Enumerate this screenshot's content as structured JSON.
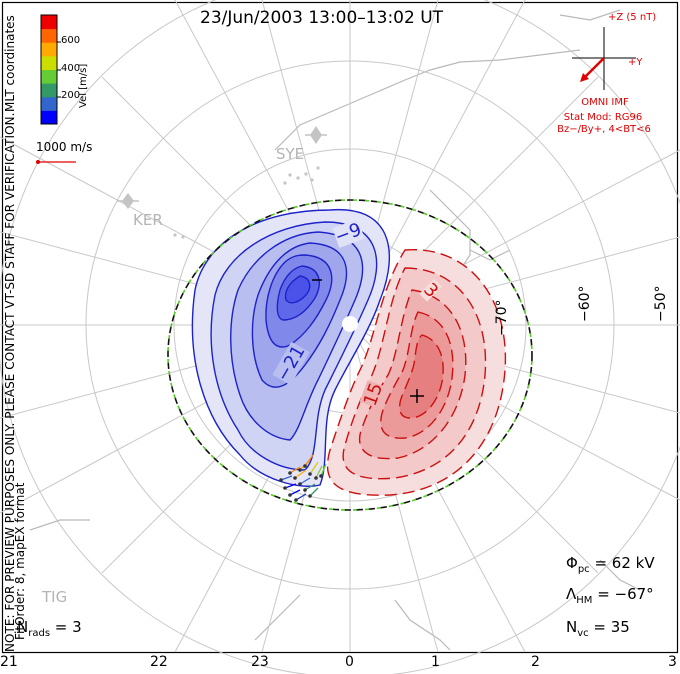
{
  "title": "23/Jun/2003 13:00–13:02 UT",
  "colorbar": {
    "label": "Vel [m/s]",
    "ticks": [
      "600",
      "400",
      "200"
    ],
    "colors": [
      "#0000ff",
      "#3366cc",
      "#339966",
      "#66cc33",
      "#ccdd00",
      "#ffaa00",
      "#ff6600",
      "#ee0000"
    ]
  },
  "coordinates_label": "MLT coordinates",
  "preview_note": "NOTE: FOR PREVIEW PURPOSES ONLY. PLEASE CONTACT VT-SD STAFF FOR VERIFICATION.",
  "fit_note": "FitOrder: 8, mapEX format",
  "vector_scale": "1000 m/s",
  "imf": {
    "z_label": "+Z (5 nT)",
    "y_label": "+Y",
    "source": "OMNI IMF",
    "model": "Stat Mod: RG96",
    "condition": "Bz−/By+, 4<BT<6"
  },
  "stations": [
    "SYE",
    "KER",
    "TIG"
  ],
  "contours": {
    "negative_labels": [
      "−9",
      "−21"
    ],
    "positive_labels": [
      "3",
      "15"
    ]
  },
  "latitude_labels": [
    "−70°",
    "−60°",
    "−50°"
  ],
  "mlt_labels": [
    "21",
    "22",
    "23",
    "0",
    "1",
    "2",
    "3"
  ],
  "stats": {
    "phi_pc_sym": "Φ",
    "phi_pc_sub": "pc",
    "phi_pc_val": " = 62 kV",
    "lambda_sym": "Λ",
    "lambda_sub": "HM",
    "lambda_val": " = −67°",
    "nvc_sym": "N",
    "nvc_sub": "vc",
    "nvc_val": " = 35",
    "nrads_sym": "N",
    "nrads_sub": "rads",
    "nrads_val": " = 3"
  }
}
